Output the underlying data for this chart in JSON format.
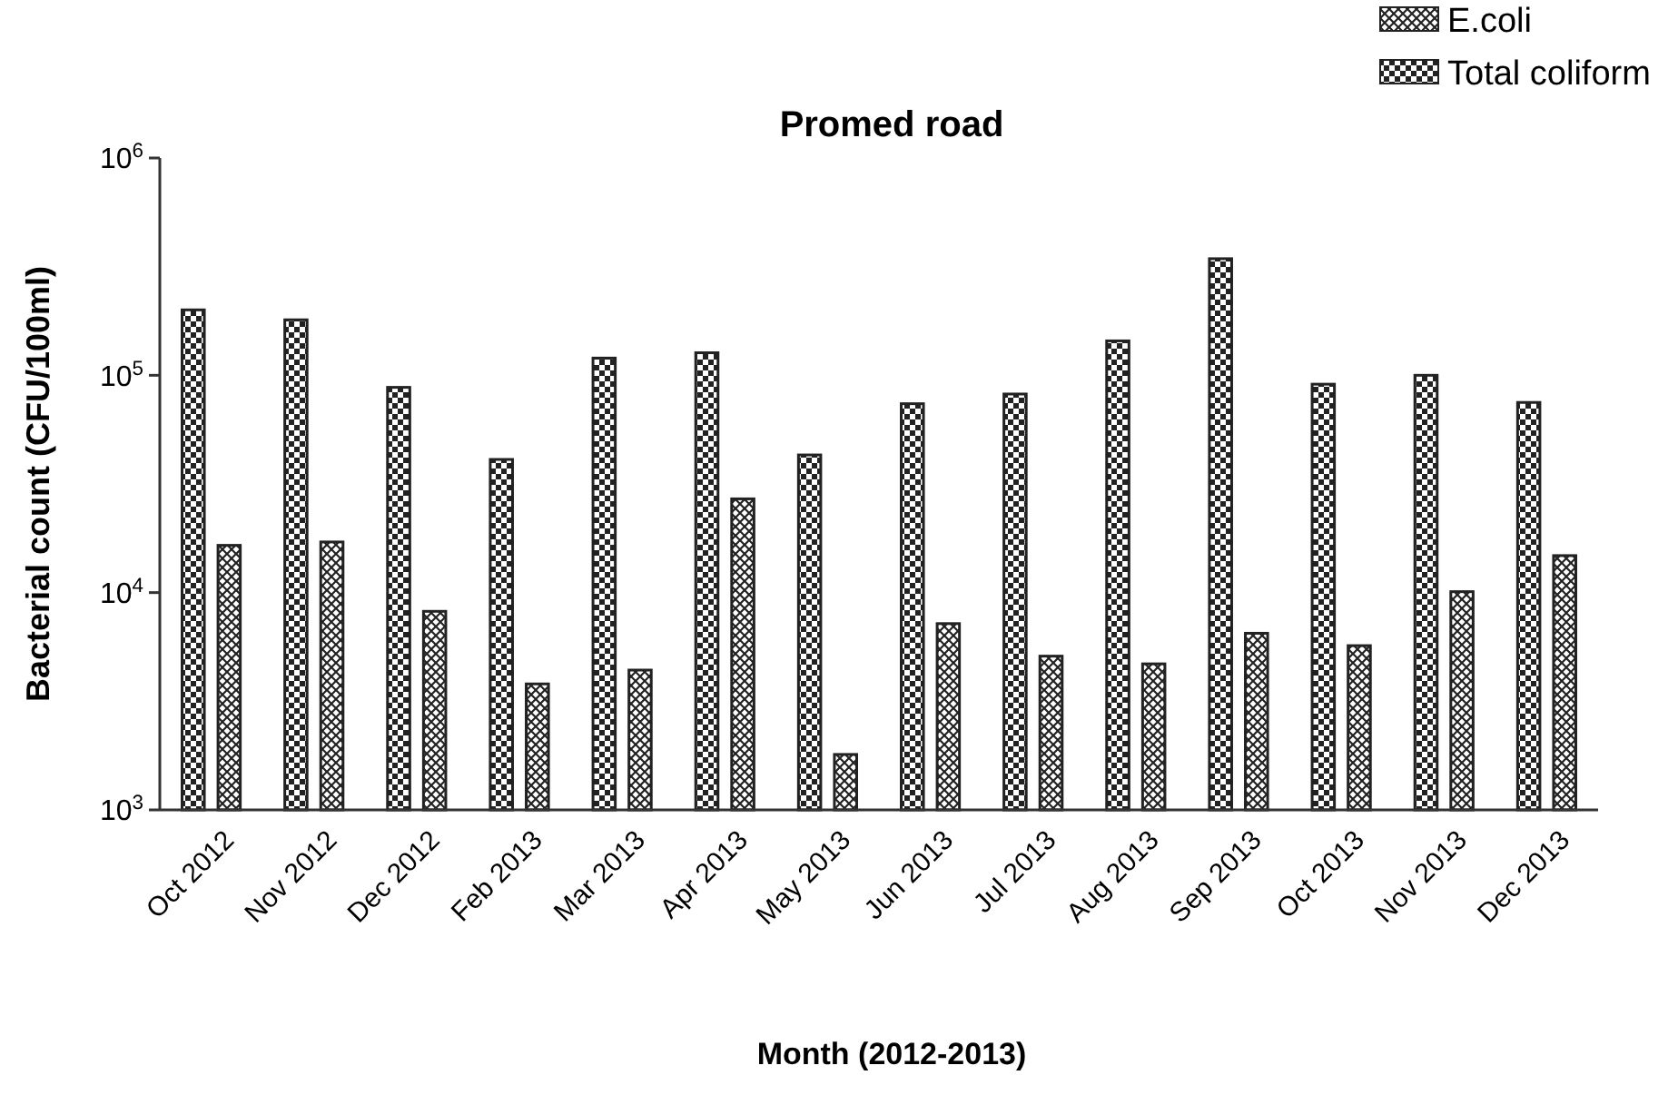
{
  "chart_data": {
    "type": "bar",
    "title": "Promed road",
    "xlabel": "Month (2012-2013)",
    "ylabel": "Bacterial count (CFU/100ml)",
    "categories": [
      "Oct 2012",
      "Nov 2012",
      "Dec 2012",
      "Feb 2013",
      "Mar 2013",
      "Apr 2013",
      "May 2013",
      "Jun 2013",
      "Jul 2013",
      "Aug 2013",
      "Sep 2013",
      "Oct 2013",
      "Nov 2013",
      "Dec 2013"
    ],
    "series": [
      {
        "name": "Total coliform",
        "color": "#222222",
        "values": [
          200000,
          180000,
          88000,
          41000,
          120000,
          127000,
          43000,
          74000,
          82000,
          144000,
          344000,
          91000,
          100000,
          75000
        ]
      },
      {
        "name": "E.coli",
        "color": "#222222",
        "values": [
          16500,
          17100,
          8200,
          3800,
          4400,
          27000,
          1800,
          7200,
          5100,
          4700,
          6500,
          5700,
          10100,
          14800
        ]
      }
    ],
    "log": true,
    "ylim": [
      1000,
      1000000
    ],
    "yticks": [
      {
        "value": 1000,
        "label": "10$^{3}$"
      },
      {
        "value": 10000,
        "label": "10$^{4}$"
      },
      {
        "value": 100000,
        "label": "10$^{5}$"
      },
      {
        "value": 1000000,
        "label": "10$^{6}$"
      }
    ],
    "grid": false,
    "legend": "top right"
  }
}
